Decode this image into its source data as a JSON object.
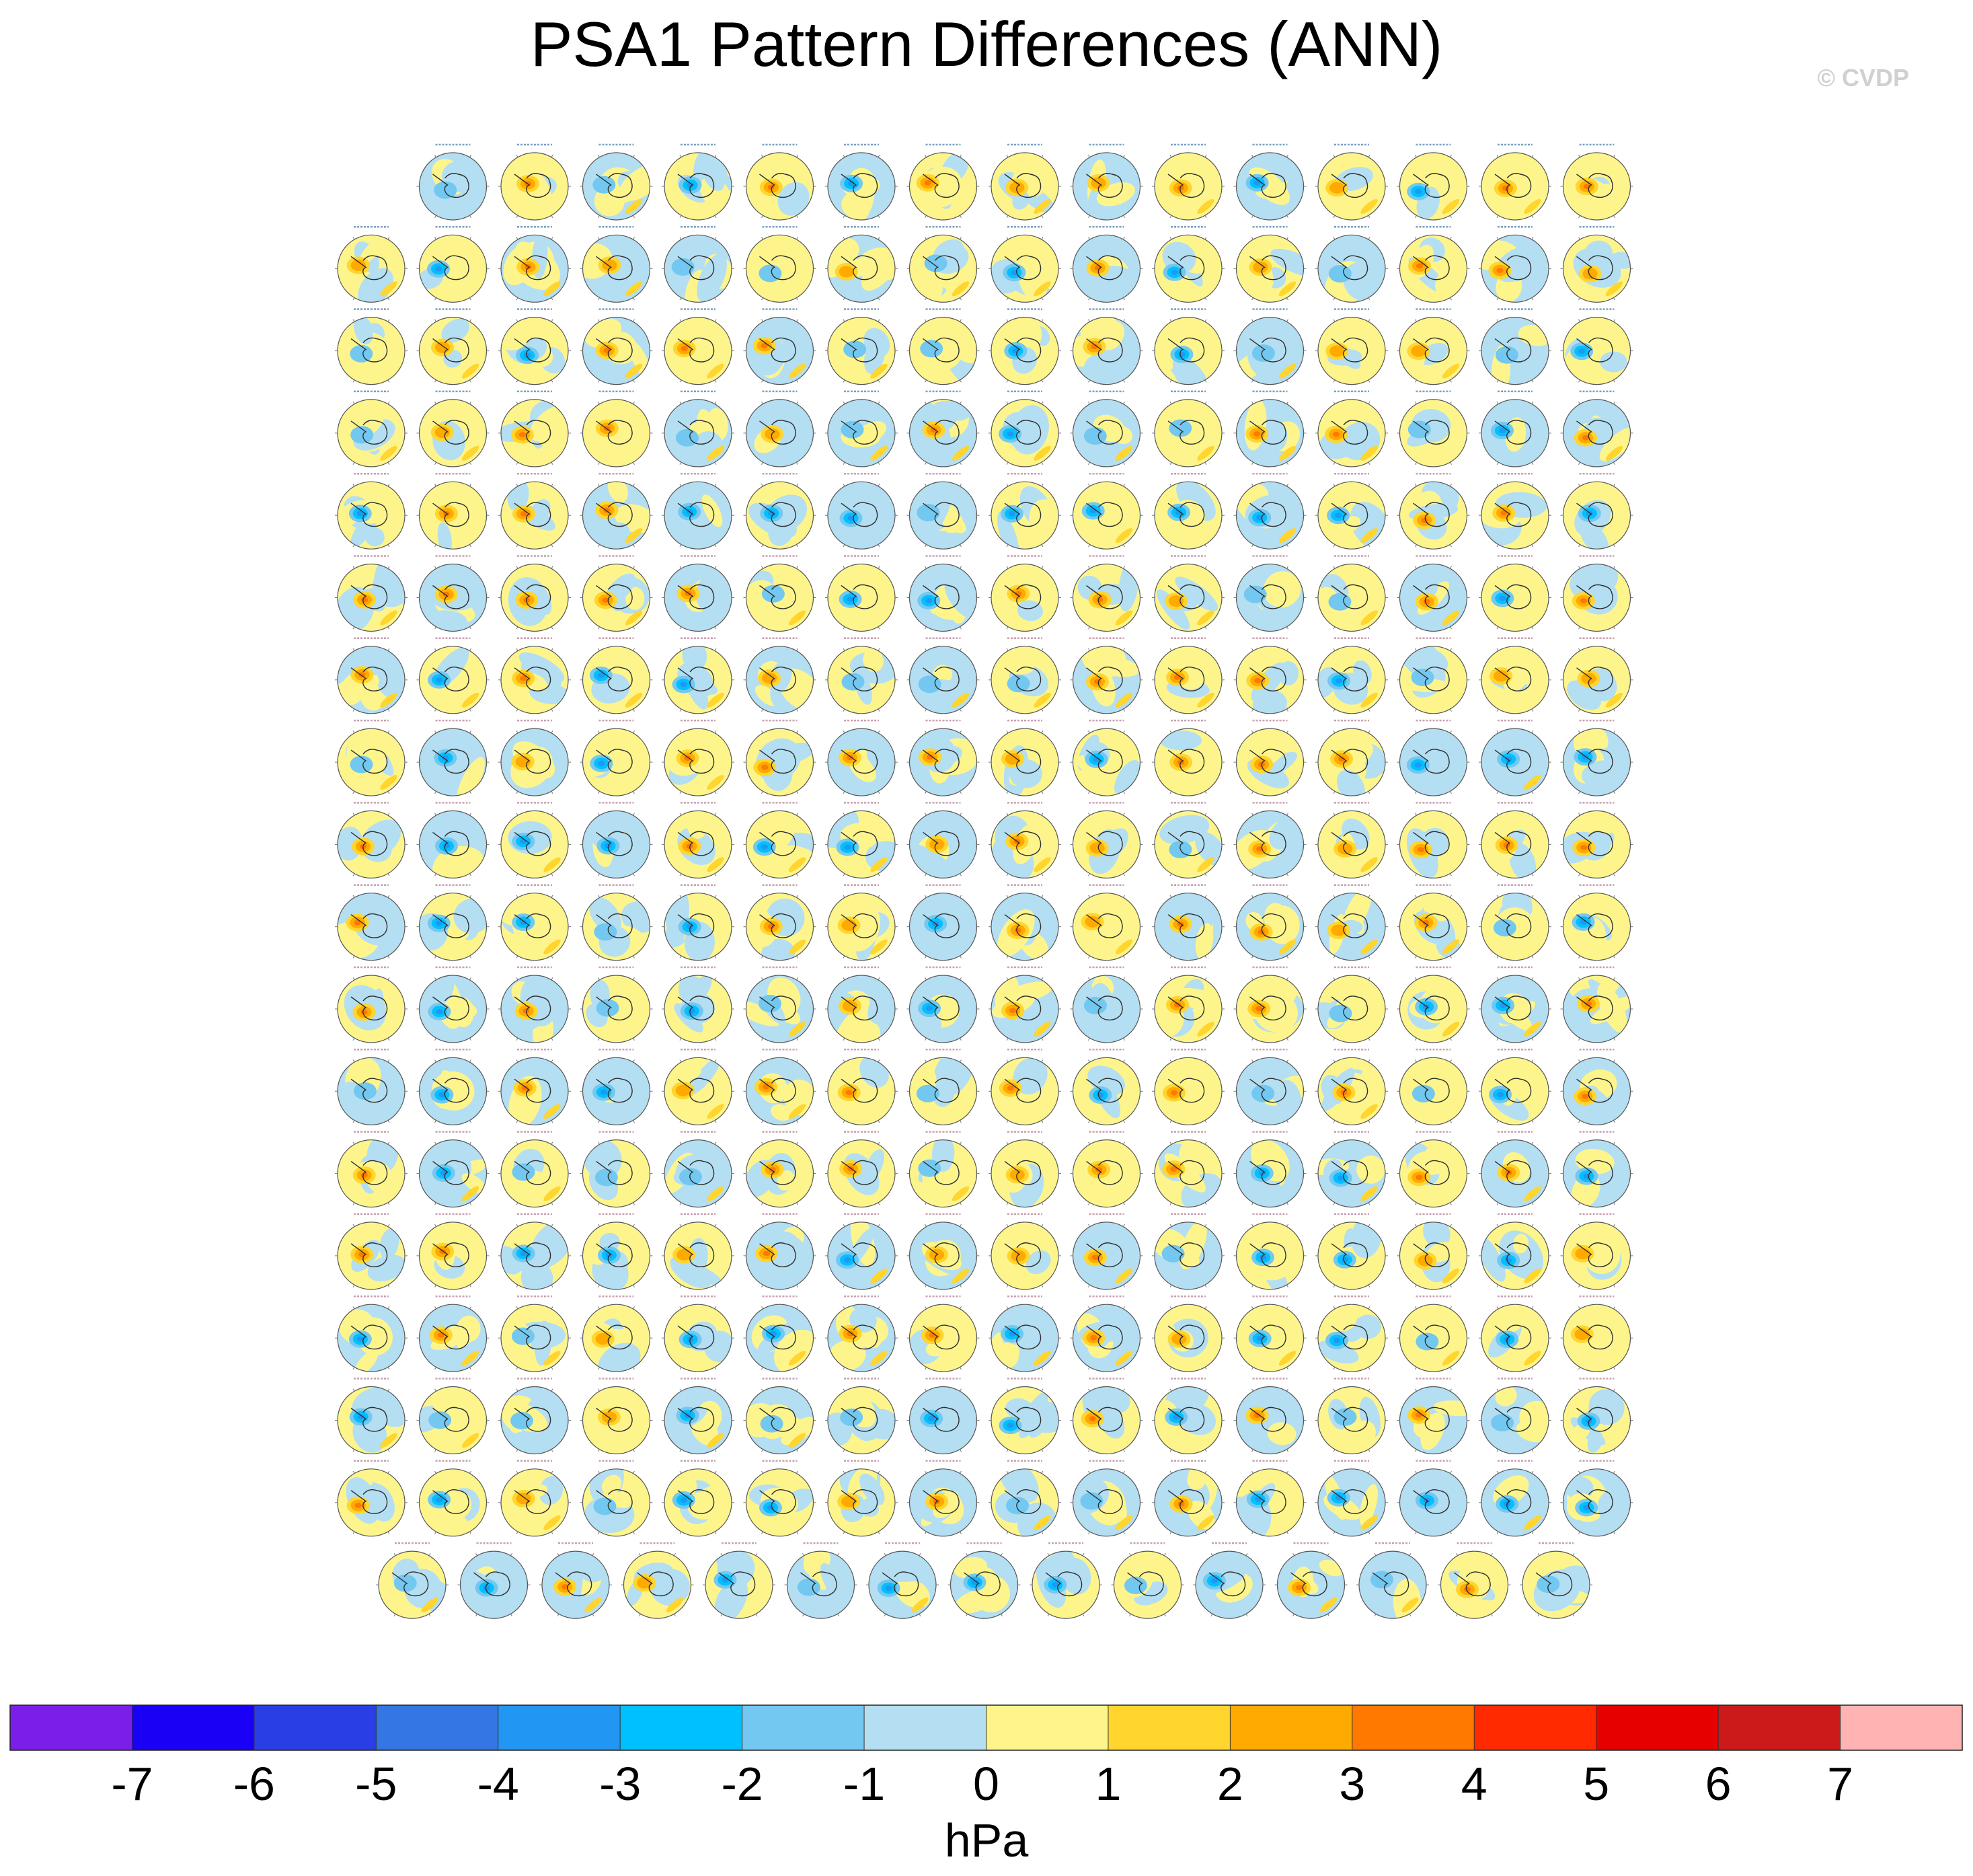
{
  "figure": {
    "title": "PSA1 Pattern Differences (ANN)",
    "watermark": "© CVDP"
  },
  "chart_data": {
    "type": "heatmap",
    "title": "PSA1 Pattern Differences (ANN)",
    "description_of_layout": "Grid of Southern Hemisphere polar-stereographic difference maps",
    "rows": [
      15,
      16,
      16,
      16,
      16,
      16,
      16,
      16,
      16,
      16,
      16,
      16,
      16,
      16,
      16,
      16,
      16,
      15
    ],
    "total_panels": 286,
    "colorbar": {
      "label": "hPa",
      "levels": [
        -7,
        -6,
        -5,
        -4,
        -3,
        -2,
        -1,
        0,
        1,
        2,
        3,
        4,
        5,
        6,
        7
      ],
      "tick_labels": [
        "-7",
        "-6",
        "-5",
        "-4",
        "-3",
        "-2",
        "-1",
        "0",
        "1",
        "2",
        "3",
        "4",
        "5",
        "6",
        "7"
      ],
      "colors": [
        "#7b1fe8",
        "#1a00f5",
        "#2a3ee6",
        "#3476e3",
        "#2196f3",
        "#00c0ff",
        "#72c8f0",
        "#b4def2",
        "#fdf58c",
        "#ffd52e",
        "#ffaa00",
        "#ff7800",
        "#ff2a00",
        "#e60000",
        "#cc1a1a",
        "#ffb3b3"
      ],
      "range": [
        -8,
        8
      ]
    }
  }
}
